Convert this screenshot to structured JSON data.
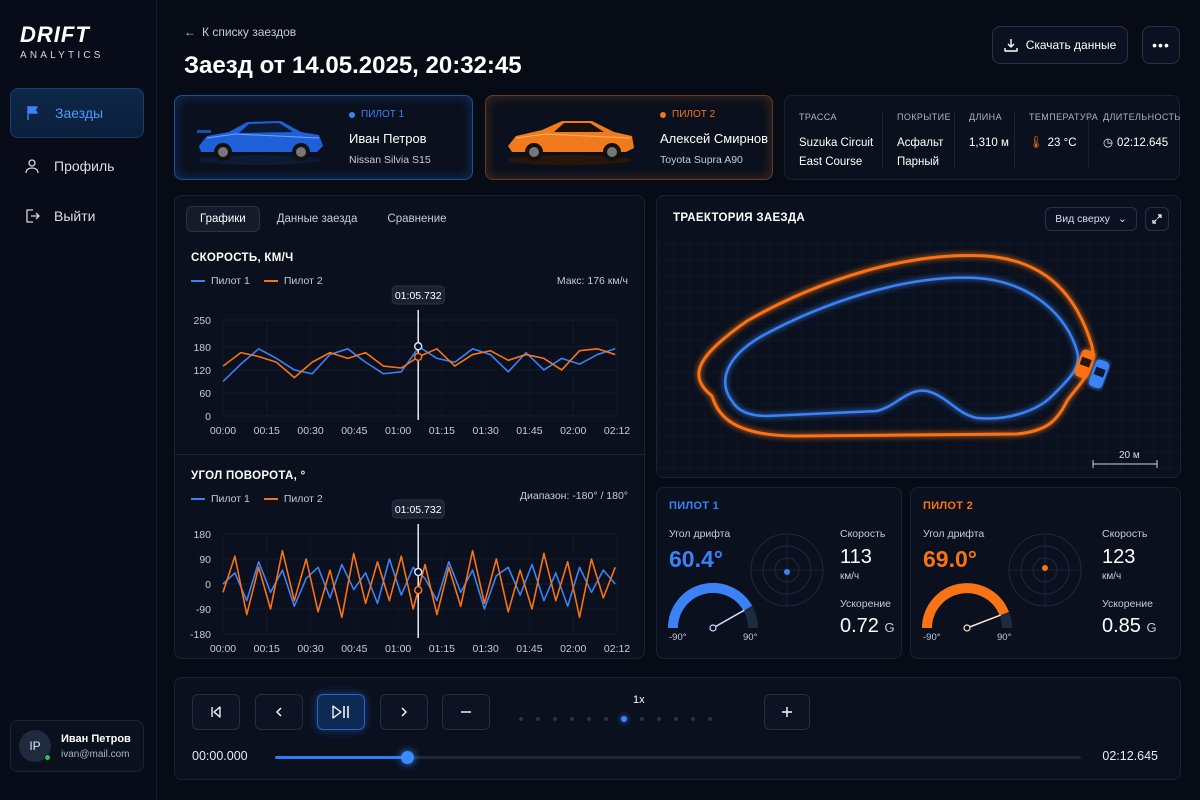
{
  "brand": {
    "name": "DRIFT",
    "sub": "ANALYTICS"
  },
  "nav": [
    {
      "label": "Заезды",
      "icon": "flag-icon",
      "active": true
    },
    {
      "label": "Профиль",
      "icon": "user-icon",
      "active": false
    },
    {
      "label": "Выйти",
      "icon": "logout-icon",
      "active": false
    }
  ],
  "user": {
    "initials": "IP",
    "name": "Иван Петров",
    "email": "ivan@mail.com"
  },
  "header": {
    "back_label": "К списку заездов",
    "title": "Заезд от 14.05.2025, 20:32:45",
    "download_label": "Скачать данные",
    "more_label": "•••"
  },
  "pilots": [
    {
      "tag": "ПИЛОТ 1",
      "name": "Иван Петров",
      "car": "Nissan Silvia S15",
      "color": "#3b82f6"
    },
    {
      "tag": "ПИЛОТ 2",
      "name": "Алексей Смирнов",
      "car": "Toyota Supra A90",
      "color": "#f97316"
    }
  ],
  "track_info": {
    "track_label": "ТРАССА",
    "track_value": "Suzuka Circuit East Course",
    "surface_label": "ПОКРЫТИЕ",
    "surface_value": "Асфальт Парный",
    "length_label": "ДЛИНА",
    "length_value": "1,310 м",
    "temp_label": "ТЕМПЕРАТУРА",
    "temp_value": "23 °C",
    "duration_label": "ДЛИТЕЛЬНОСТЬ",
    "duration_value": "02:12.645"
  },
  "tabs": [
    "Графики",
    "Данные заезда",
    "Сравнение"
  ],
  "speed_chart": {
    "title": "СКОРОСТЬ, КМ/Ч",
    "legend": [
      "Пилот 1",
      "Пилот 2"
    ],
    "meta": "Макс: 176 км/ч",
    "cursor_label": "01:05.732"
  },
  "angle_chart": {
    "title": "УГОЛ ПОВОРОТА, °",
    "legend": [
      "Пилот 1",
      "Пилот 2"
    ],
    "meta": "Диапазон: -180° / 180°",
    "cursor_label": "01:05.732"
  },
  "chart_data": [
    {
      "type": "line",
      "title": "СКОРОСТЬ, КМ/Ч",
      "xlabel": "",
      "ylabel": "",
      "x_ticks": [
        "00:00",
        "00:15",
        "00:30",
        "00:45",
        "01:00",
        "01:15",
        "01:30",
        "01:45",
        "02:00",
        "02:12"
      ],
      "y_ticks": [
        0,
        60,
        120,
        180,
        250
      ],
      "ylim": [
        0,
        250
      ],
      "xlim": [
        0,
        132.6
      ],
      "cursor_x": 65.7,
      "series": [
        {
          "name": "Пилот 1",
          "color": "#3b82f6",
          "x": [
            0,
            6,
            12,
            18,
            24,
            30,
            36,
            42,
            48,
            54,
            60,
            66,
            72,
            78,
            84,
            90,
            96,
            102,
            108,
            114,
            120,
            126,
            132
          ],
          "values": [
            90,
            135,
            175,
            150,
            120,
            110,
            160,
            175,
            140,
            110,
            115,
            180,
            150,
            140,
            175,
            160,
            115,
            165,
            120,
            150,
            135,
            160,
            175
          ]
        },
        {
          "name": "Пилот 2",
          "color": "#f97316",
          "x": [
            0,
            6,
            12,
            18,
            24,
            30,
            36,
            42,
            48,
            54,
            60,
            66,
            72,
            78,
            84,
            90,
            96,
            102,
            108,
            114,
            120,
            126,
            132
          ],
          "values": [
            130,
            165,
            155,
            140,
            100,
            140,
            165,
            150,
            165,
            130,
            125,
            155,
            175,
            130,
            160,
            170,
            145,
            160,
            150,
            120,
            170,
            175,
            160
          ]
        }
      ]
    },
    {
      "type": "line",
      "title": "УГОЛ ПОВОРОТА, °",
      "xlabel": "",
      "ylabel": "",
      "x_ticks": [
        "00:00",
        "00:15",
        "00:30",
        "00:45",
        "01:00",
        "01:15",
        "01:30",
        "01:45",
        "02:00",
        "02:12"
      ],
      "y_ticks": [
        180,
        90,
        0,
        -90,
        -180
      ],
      "ylim": [
        -180,
        180
      ],
      "xlim": [
        0,
        132.6
      ],
      "cursor_x": 65.7,
      "series": [
        {
          "name": "Пилот 1",
          "color": "#3b82f6",
          "x": [
            0,
            4,
            8,
            12,
            16,
            20,
            24,
            28,
            32,
            36,
            40,
            44,
            48,
            52,
            56,
            60,
            64,
            68,
            72,
            76,
            80,
            84,
            88,
            92,
            96,
            100,
            104,
            108,
            112,
            116,
            120,
            124,
            128,
            132
          ],
          "values": [
            0,
            40,
            -60,
            80,
            -30,
            50,
            -80,
            20,
            60,
            -50,
            70,
            -20,
            40,
            -70,
            90,
            -40,
            60,
            20,
            -60,
            80,
            -30,
            50,
            -90,
            30,
            60,
            -40,
            70,
            -60,
            40,
            -80,
            60,
            -30,
            50,
            0
          ]
        },
        {
          "name": "Пилот 2",
          "color": "#f97316",
          "x": [
            0,
            4,
            8,
            12,
            16,
            20,
            24,
            28,
            32,
            36,
            40,
            44,
            48,
            52,
            56,
            60,
            64,
            68,
            72,
            76,
            80,
            84,
            88,
            92,
            96,
            100,
            104,
            108,
            112,
            116,
            120,
            124,
            128,
            132
          ],
          "values": [
            -30,
            100,
            -110,
            60,
            -90,
            120,
            -60,
            90,
            -100,
            50,
            -120,
            110,
            -70,
            80,
            -60,
            100,
            -90,
            70,
            -110,
            60,
            -80,
            120,
            -70,
            90,
            -100,
            50,
            -90,
            110,
            -60,
            80,
            -120,
            90,
            -50,
            60
          ]
        }
      ]
    }
  ],
  "trajectory": {
    "title": "ТРАЕКТОРИЯ ЗАЕЗДА",
    "view_label": "Вид сверху",
    "scale_label": "20 м"
  },
  "telemetry": [
    {
      "title": "ПИЛОТ 1",
      "color": "#3b82f6",
      "drift_label": "Угол дрифта",
      "drift_value": "60.4°",
      "speed_label": "Скорость",
      "speed_value": "113",
      "speed_unit": "км/ч",
      "accel_label": "Ускорение",
      "accel_value": "0.72",
      "accel_unit": "G",
      "gauge_min": "-90°",
      "gauge_max": "90°",
      "drift_angle": 60.4
    },
    {
      "title": "ПИЛОТ 2",
      "color": "#f97316",
      "drift_label": "Угол дрифта",
      "drift_value": "69.0°",
      "speed_label": "Скорость",
      "speed_value": "123",
      "speed_unit": "км/ч",
      "accel_label": "Ускорение",
      "accel_value": "0.85",
      "accel_unit": "G",
      "gauge_min": "-90°",
      "gauge_max": "90°",
      "drift_angle": 69.0
    }
  ],
  "player": {
    "speed_label": "1x",
    "time_current": "00:00.000",
    "time_total": "02:12.645",
    "progress": 0.164,
    "speed_steps": 12,
    "speed_active_index": 6
  }
}
